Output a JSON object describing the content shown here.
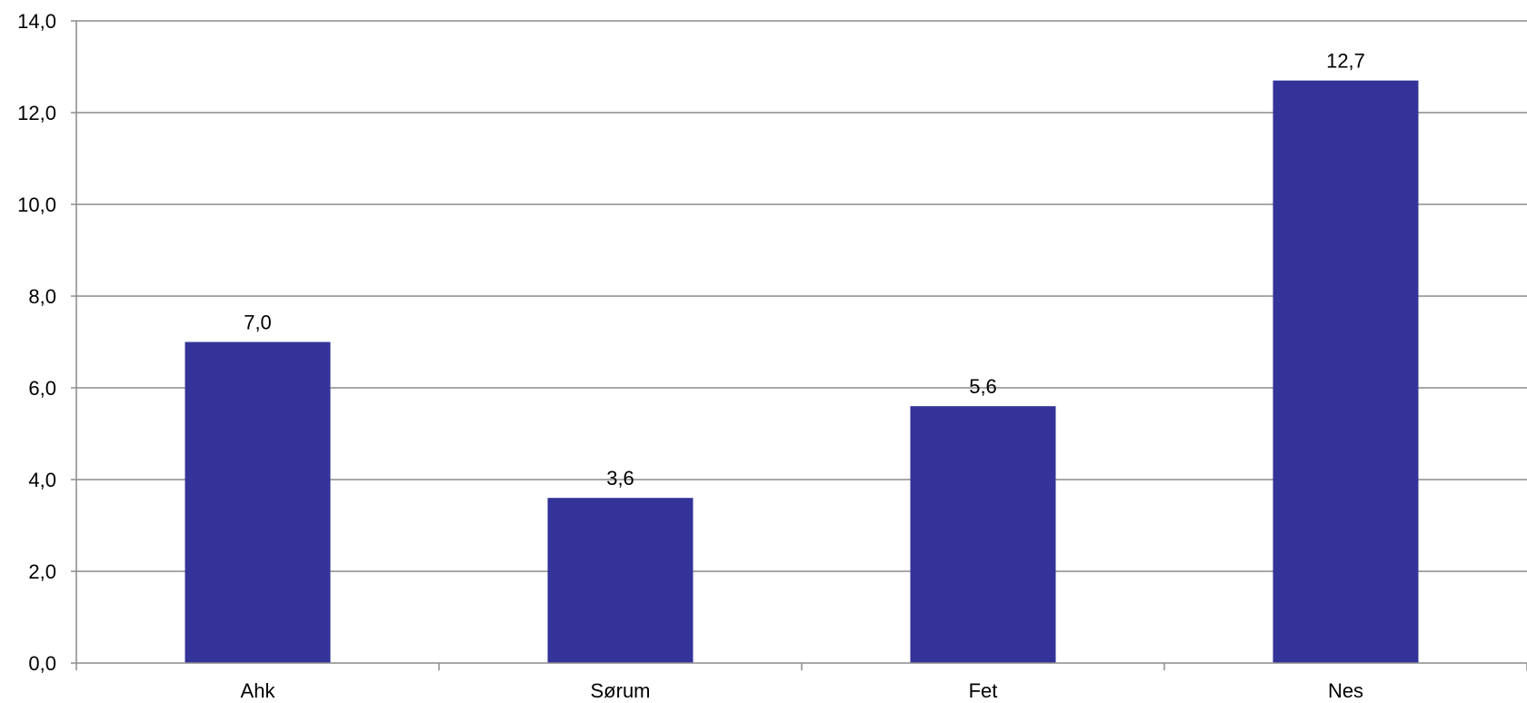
{
  "chart_data": {
    "type": "bar",
    "categories": [
      "Ahk",
      "Sørum",
      "Fet",
      "Nes"
    ],
    "values": [
      7.0,
      3.6,
      5.6,
      12.7
    ],
    "value_labels": [
      "7,0",
      "3,6",
      "5,6",
      "12,7"
    ],
    "y_ticks": [
      "0,0",
      "2,0",
      "4,0",
      "6,0",
      "8,0",
      "10,0",
      "12,0",
      "14,0"
    ],
    "ylim": [
      0,
      14
    ],
    "grid": true,
    "legend": "none",
    "bar_color": "#333399",
    "grid_color": "#8c8c8c"
  }
}
